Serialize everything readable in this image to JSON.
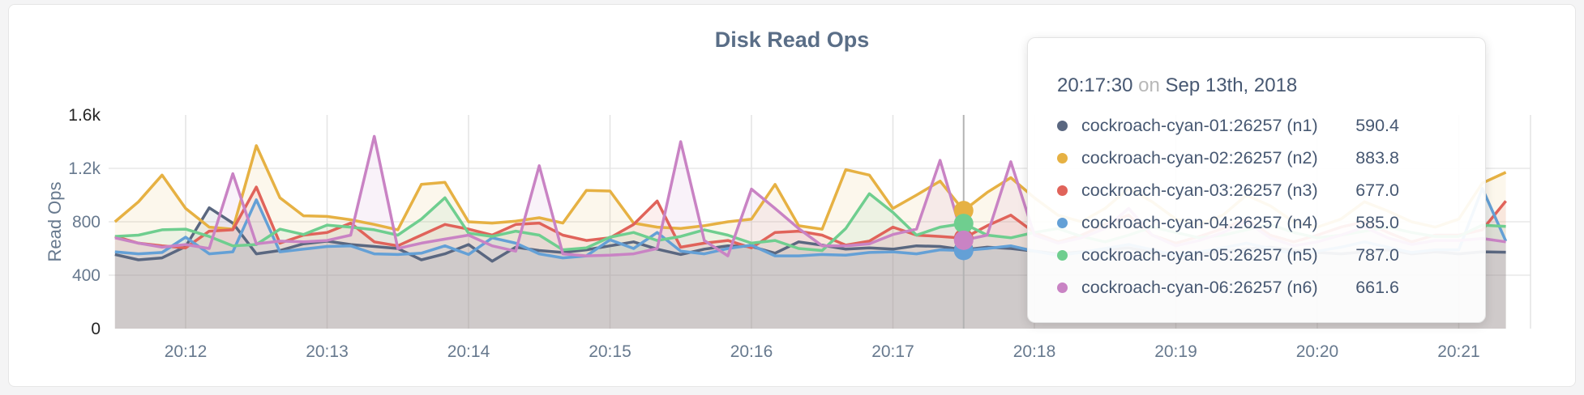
{
  "panel": {
    "title": "Disk Read Ops"
  },
  "tooltip": {
    "time": "20:17:30",
    "conjunction": "on",
    "date": "Sep 13th, 2018",
    "rows": [
      {
        "label": "cockroach-cyan-01:26257 (n1)",
        "value": "590.4",
        "color": "#5a6780"
      },
      {
        "label": "cockroach-cyan-02:26257 (n2)",
        "value": "883.8",
        "color": "#e6b143"
      },
      {
        "label": "cockroach-cyan-03:26257 (n3)",
        "value": "677.0",
        "color": "#e0635a"
      },
      {
        "label": "cockroach-cyan-04:26257 (n4)",
        "value": "585.0",
        "color": "#64a0d6"
      },
      {
        "label": "cockroach-cyan-05:26257 (n5)",
        "value": "787.0",
        "color": "#6fce8f"
      },
      {
        "label": "cockroach-cyan-06:26257 (n6)",
        "value": "661.6",
        "color": "#c983c4"
      }
    ]
  },
  "chart_data": {
    "type": "area",
    "title": "Disk Read Ops",
    "ylabel": "Read Ops",
    "ylim": [
      0,
      1600
    ],
    "grid": true,
    "x_start": "20:11:30",
    "x_interval_seconds": 10,
    "x_ticks": [
      "20:12",
      "20:13",
      "20:14",
      "20:15",
      "20:16",
      "20:17",
      "20:18",
      "20:19",
      "20:20",
      "20:21"
    ],
    "y_ticks": [
      {
        "value": 0,
        "label": "0",
        "extreme": true,
        "gridline": false
      },
      {
        "value": 400,
        "label": "400",
        "extreme": false,
        "gridline": true
      },
      {
        "value": 800,
        "label": "800",
        "extreme": false,
        "gridline": true
      },
      {
        "value": 1200,
        "label": "1.2k",
        "extreme": false,
        "gridline": true
      },
      {
        "value": 1600,
        "label": "1.6k",
        "extreme": true,
        "gridline": false
      }
    ],
    "hover": {
      "time": "20:17:30",
      "index": 36
    },
    "series": [
      {
        "name": "cockroach-cyan-01:26257 (n1)",
        "color": "#5a6780",
        "values": [
          555,
          515,
          530,
          615,
          905,
          790,
          560,
          585,
          635,
          655,
          630,
          615,
          600,
          515,
          560,
          630,
          505,
          610,
          585,
          570,
          590,
          620,
          650,
          595,
          555,
          595,
          620,
          615,
          565,
          650,
          625,
          595,
          605,
          595,
          620,
          615,
          590.4,
          610,
          600,
          580,
          560,
          575,
          590,
          605,
          570,
          545,
          560,
          580,
          595,
          610,
          585,
          570,
          560,
          575,
          590,
          560,
          575,
          560,
          575,
          572
        ]
      },
      {
        "name": "cockroach-cyan-02:26257 (n2)",
        "color": "#e6b143",
        "values": [
          800,
          950,
          1150,
          900,
          760,
          745,
          1370,
          980,
          845,
          840,
          815,
          780,
          740,
          1080,
          1095,
          800,
          790,
          805,
          830,
          790,
          1035,
          1030,
          790,
          760,
          750,
          770,
          800,
          820,
          1080,
          770,
          745,
          1190,
          1150,
          900,
          1000,
          1105,
          883.8,
          1020,
          1130,
          980,
          850,
          800,
          900,
          1050,
          950,
          820,
          780,
          850,
          1000,
          920,
          800,
          760,
          820,
          950,
          880,
          800,
          760,
          820,
          1090,
          1170
        ]
      },
      {
        "name": "cockroach-cyan-03:26257 (n3)",
        "color": "#e0635a",
        "values": [
          690,
          640,
          620,
          605,
          730,
          740,
          1060,
          640,
          700,
          720,
          790,
          650,
          620,
          700,
          780,
          745,
          700,
          780,
          790,
          700,
          660,
          680,
          780,
          955,
          610,
          640,
          660,
          605,
          720,
          730,
          700,
          625,
          655,
          760,
          700,
          690,
          677,
          770,
          850,
          720,
          650,
          700,
          780,
          850,
          700,
          640,
          690,
          750,
          820,
          700,
          650,
          700,
          760,
          800,
          720,
          650,
          700,
          700,
          740,
          955
        ]
      },
      {
        "name": "cockroach-cyan-04:26257 (n4)",
        "color": "#64a0d6",
        "values": [
          575,
          560,
          570,
          685,
          560,
          575,
          965,
          575,
          595,
          615,
          620,
          560,
          555,
          565,
          620,
          555,
          680,
          640,
          560,
          530,
          545,
          665,
          600,
          720,
          580,
          560,
          600,
          625,
          545,
          545,
          555,
          550,
          570,
          575,
          560,
          590,
          585,
          600,
          620,
          580,
          550,
          570,
          600,
          630,
          590,
          550,
          575,
          605,
          640,
          600,
          560,
          580,
          610,
          650,
          610,
          570,
          590,
          590,
          1050,
          655
        ]
      },
      {
        "name": "cockroach-cyan-05:26257 (n5)",
        "color": "#6fce8f",
        "values": [
          690,
          700,
          740,
          745,
          690,
          620,
          630,
          745,
          705,
          775,
          760,
          740,
          700,
          820,
          980,
          715,
          690,
          730,
          700,
          590,
          605,
          685,
          720,
          660,
          690,
          740,
          700,
          640,
          660,
          600,
          585,
          750,
          1010,
          870,
          700,
          760,
          787,
          700,
          680,
          720,
          750,
          690,
          650,
          700,
          760,
          720,
          680,
          700,
          740,
          780,
          720,
          680,
          700,
          730,
          760,
          720,
          690,
          690,
          775,
          765
        ]
      },
      {
        "name": "cockroach-cyan-06:26257 (n6)",
        "color": "#c983c4",
        "values": [
          680,
          640,
          610,
          630,
          600,
          1160,
          635,
          655,
          650,
          660,
          700,
          1440,
          600,
          640,
          670,
          700,
          620,
          580,
          1220,
          560,
          545,
          550,
          560,
          600,
          1400,
          660,
          545,
          1045,
          900,
          750,
          620,
          620,
          635,
          705,
          745,
          1260,
          661.6,
          700,
          1250,
          700,
          640,
          680,
          750,
          900,
          700,
          620,
          660,
          720,
          800,
          680,
          620,
          650,
          700,
          760,
          680,
          630,
          660,
          660,
          675,
          650
        ]
      }
    ]
  }
}
